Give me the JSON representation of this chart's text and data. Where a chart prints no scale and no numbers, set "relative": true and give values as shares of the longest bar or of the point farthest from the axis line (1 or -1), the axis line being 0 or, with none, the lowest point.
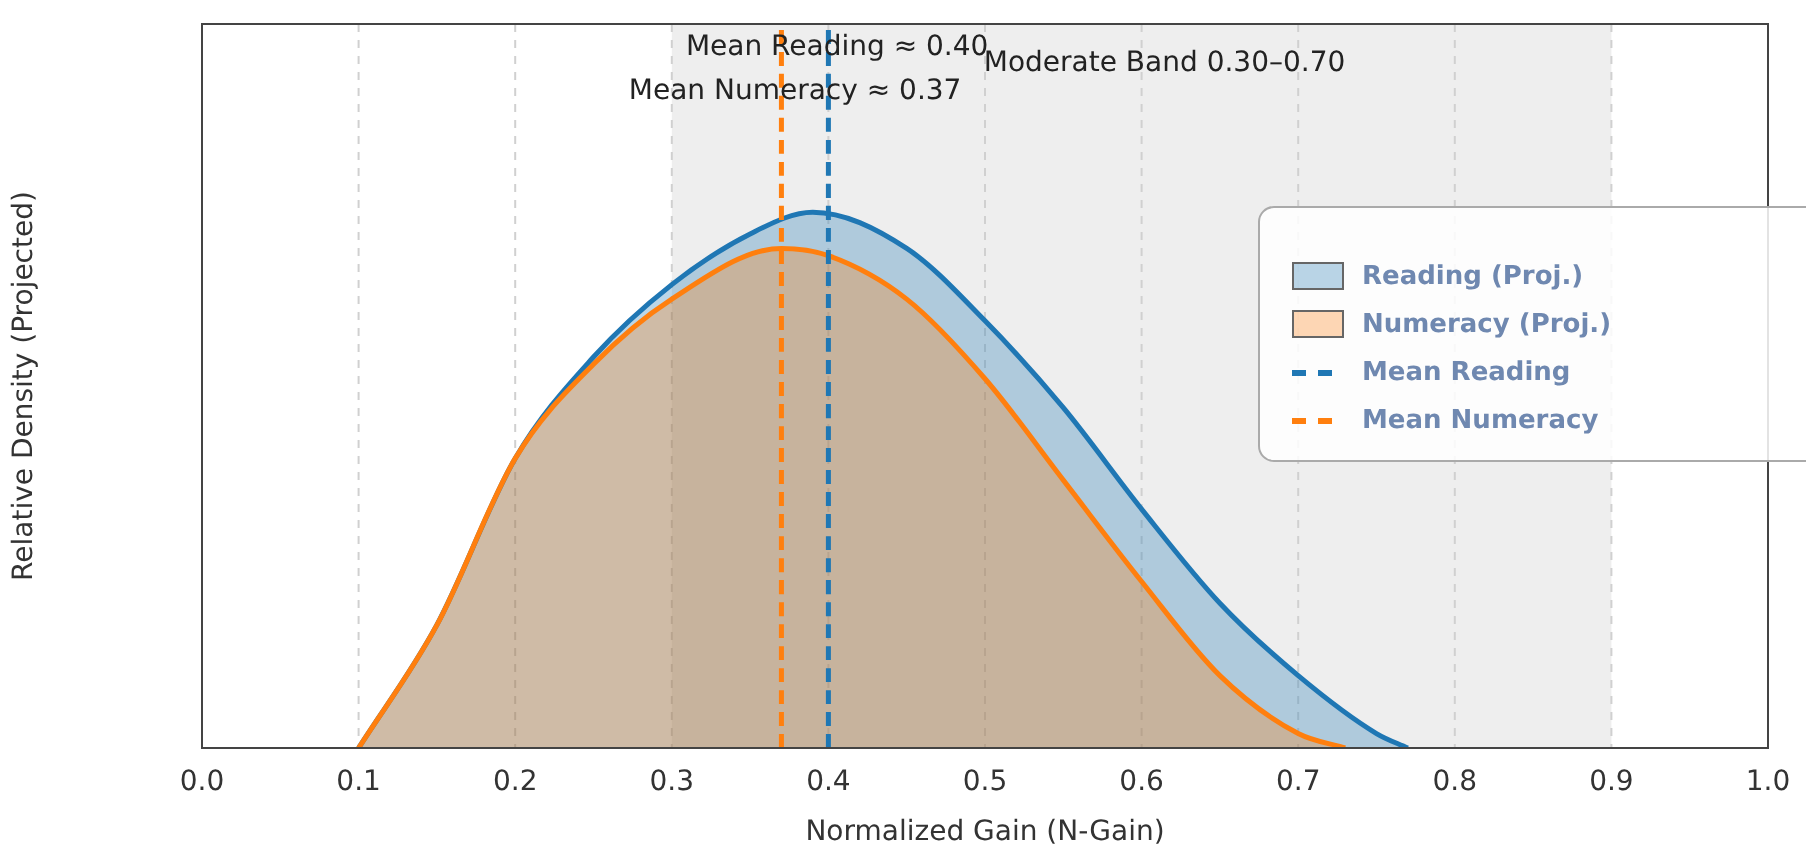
{
  "chart_data": {
    "type": "area",
    "xlabel": "Normalized Gain (N-Gain)",
    "ylabel": "Relative Density (Projected)",
    "relative": true,
    "xlim": [
      0,
      1
    ],
    "xticks": [
      {
        "value": 0,
        "label": "0.0"
      },
      0.1,
      0.2,
      0.3,
      0.4,
      0.5,
      0.6,
      0.7,
      0.8,
      0.9,
      {
        "value": 1,
        "label": "1.0"
      }
    ],
    "grid": "x",
    "legend": "right",
    "series": [
      {
        "name": "Reading (Proj.)",
        "color": "#1f77b4",
        "x": [
          0.1,
          0.15,
          0.2,
          0.25,
          0.3,
          0.35,
          0.39,
          0.45,
          0.5,
          0.55,
          0.6,
          0.65,
          0.7,
          0.75,
          0.77
        ],
        "values": [
          0,
          0.17,
          0.4,
          0.54,
          0.64,
          0.71,
          0.74,
          0.69,
          0.59,
          0.47,
          0.33,
          0.2,
          0.1,
          0.02,
          0
        ]
      },
      {
        "name": "Numeracy (Proj.)",
        "color": "#ff7f0e",
        "x": [
          0.1,
          0.15,
          0.2,
          0.25,
          0.3,
          0.37,
          0.4,
          0.45,
          0.5,
          0.55,
          0.6,
          0.65,
          0.7,
          0.73
        ],
        "values": [
          0,
          0.17,
          0.4,
          0.53,
          0.62,
          0.69,
          0.68,
          0.62,
          0.51,
          0.37,
          0.23,
          0.1,
          0.02,
          0
        ]
      },
      {
        "name": "Mean Reading",
        "type": "line",
        "line_style": "dashed",
        "color": "#1f77b4",
        "x": [
          0.4,
          0.4
        ],
        "values": [
          0,
          1
        ]
      },
      {
        "name": "Mean Numeracy",
        "type": "line",
        "line_style": "dashed",
        "color": "#ff7f0e",
        "x": [
          0.37,
          0.37
        ],
        "values": [
          0,
          1
        ]
      }
    ],
    "bands": [
      {
        "axis": "x",
        "from": 0.3,
        "to": 0.9,
        "label": "Moderate Band 0.30–0.70",
        "color": "#eeeeee"
      }
    ],
    "annotations": [
      {
        "text": "Mean Reading ≈ 0.40",
        "x": 0.4,
        "y": 1
      },
      {
        "text": "Mean Numeracy ≈ 0.37",
        "x": 0.37,
        "y": 1
      }
    ]
  }
}
